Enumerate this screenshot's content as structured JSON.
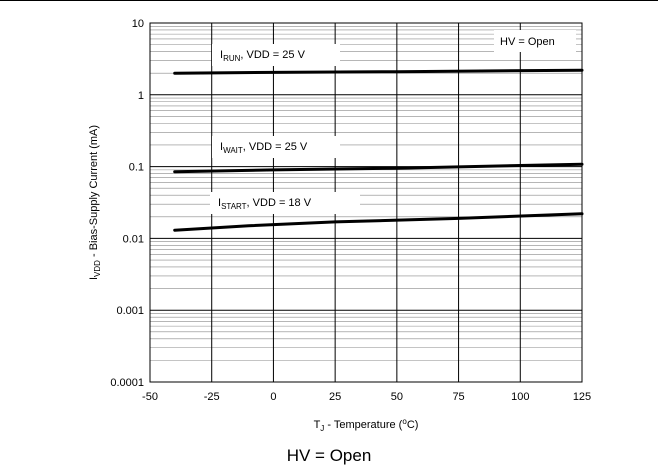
{
  "chart_data": {
    "type": "line",
    "xlabel": {
      "main": "T",
      "sub": "J",
      "rest": " - Temperature  (",
      "sup": "o",
      "end": "C)"
    },
    "ylabel": {
      "main": "I",
      "sub": "VDD",
      "rest": " - Bias-Supply Current  (mA)"
    },
    "xlim": [
      -50,
      125
    ],
    "ylim": [
      0.0001,
      10
    ],
    "yscale": "log",
    "grid": true,
    "x_ticks": [
      "-50",
      "-25",
      "0",
      "25",
      "50",
      "75",
      "100",
      "125"
    ],
    "x_tick_values": [
      -50,
      -25,
      0,
      25,
      50,
      75,
      100,
      125
    ],
    "y_ticks": [
      "10",
      "1",
      "0.1",
      "0.01",
      "0.001",
      "0.0001"
    ],
    "y_tick_values": [
      10,
      1,
      0.1,
      0.01,
      0.001,
      0.0001
    ],
    "legend_box": "HV = Open",
    "series": [
      {
        "name": "IRUN",
        "label_main": "I",
        "label_sub": "RUN",
        "label_rest": ",  VDD = 25 V",
        "x": [
          -40,
          0,
          50,
          125
        ],
        "y": [
          2.0,
          2.05,
          2.1,
          2.2
        ]
      },
      {
        "name": "IWAIT",
        "label_main": "I",
        "label_sub": "WAIT",
        "label_rest": ",  VDD = 25 V",
        "x": [
          -40,
          0,
          50,
          125
        ],
        "y": [
          0.085,
          0.09,
          0.095,
          0.108
        ]
      },
      {
        "name": "ISTART",
        "label_main": "I",
        "label_sub": "START",
        "label_rest": ",  VDD = 18 V",
        "x": [
          -40,
          -10,
          25,
          75,
          125
        ],
        "y": [
          0.013,
          0.015,
          0.017,
          0.019,
          0.022
        ]
      }
    ]
  },
  "caption": "HV = Open"
}
